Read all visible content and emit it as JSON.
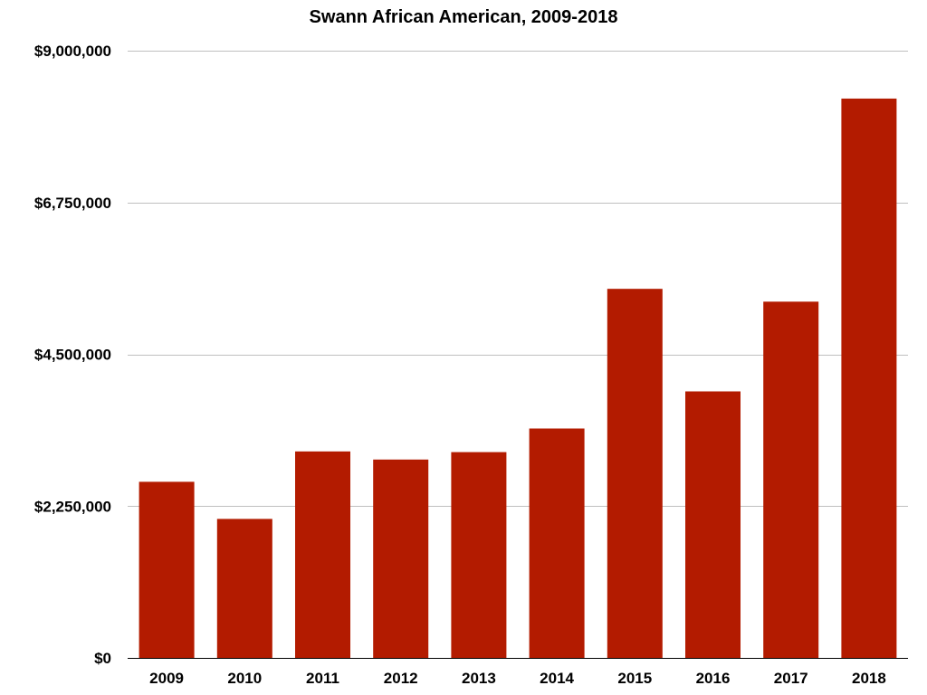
{
  "chart_data": {
    "type": "bar",
    "title": "Swann African American, 2009-2018",
    "xlabel": "",
    "ylabel": "",
    "categories": [
      "2009",
      "2010",
      "2011",
      "2012",
      "2013",
      "2014",
      "2015",
      "2016",
      "2017",
      "2018"
    ],
    "values": [
      2610000,
      2060000,
      3060000,
      2940000,
      3050000,
      3400000,
      5470000,
      3950000,
      5280000,
      8290000
    ],
    "ylim": [
      0,
      9000000
    ],
    "yticks": [
      0,
      2250000,
      4500000,
      6750000,
      9000000
    ],
    "ytick_labels": [
      "$0",
      "$2,250,000",
      "$4,500,000",
      "$6,750,000",
      "$9,000,000"
    ],
    "grid": true,
    "legend": "none",
    "bar_color": "#b31b00",
    "grid_color": "#bfbfbf",
    "axis_color": "#000000"
  }
}
